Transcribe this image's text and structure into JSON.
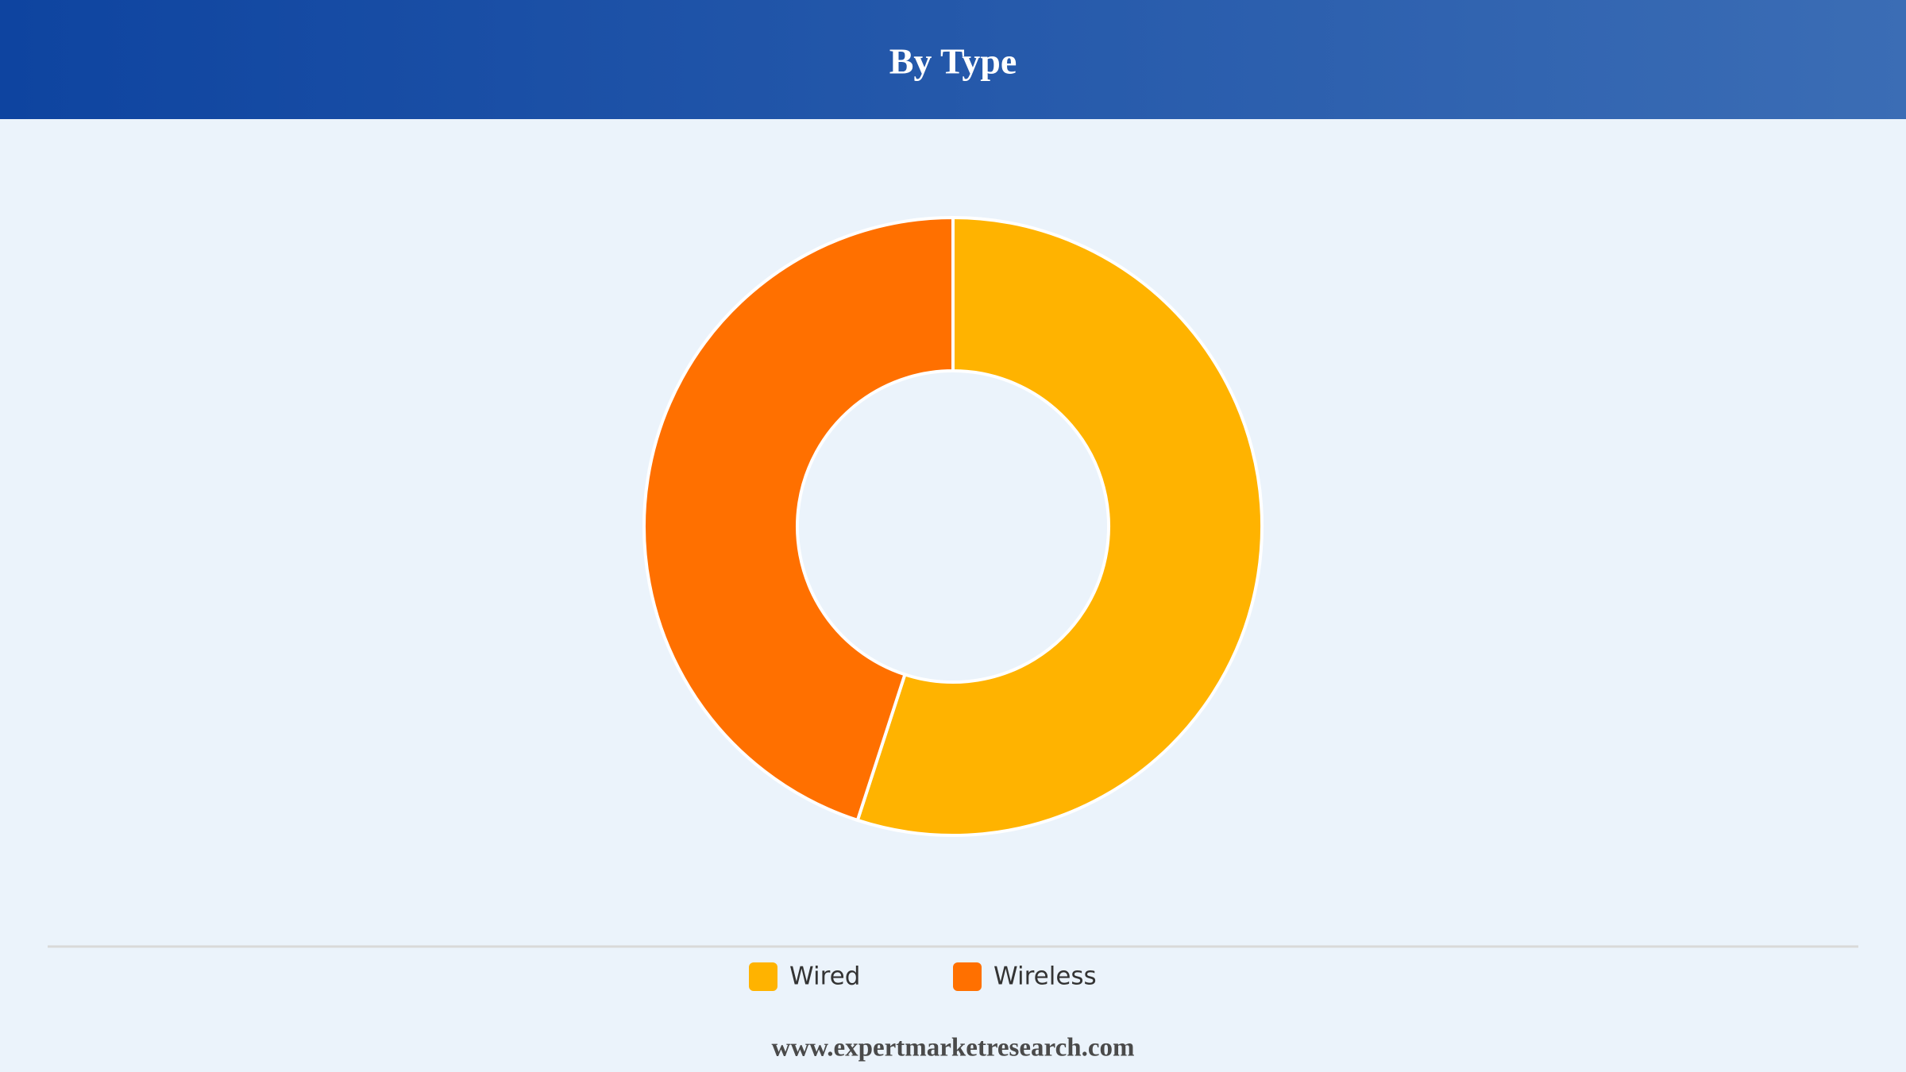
{
  "chart_data": {
    "type": "pie",
    "title": "By Type",
    "categories": [
      "Wired",
      "Wireless"
    ],
    "values": [
      55,
      45
    ],
    "colors": [
      "#ffb300",
      "#ff7000"
    ]
  },
  "footer": "www.expertmarketresearch.com"
}
